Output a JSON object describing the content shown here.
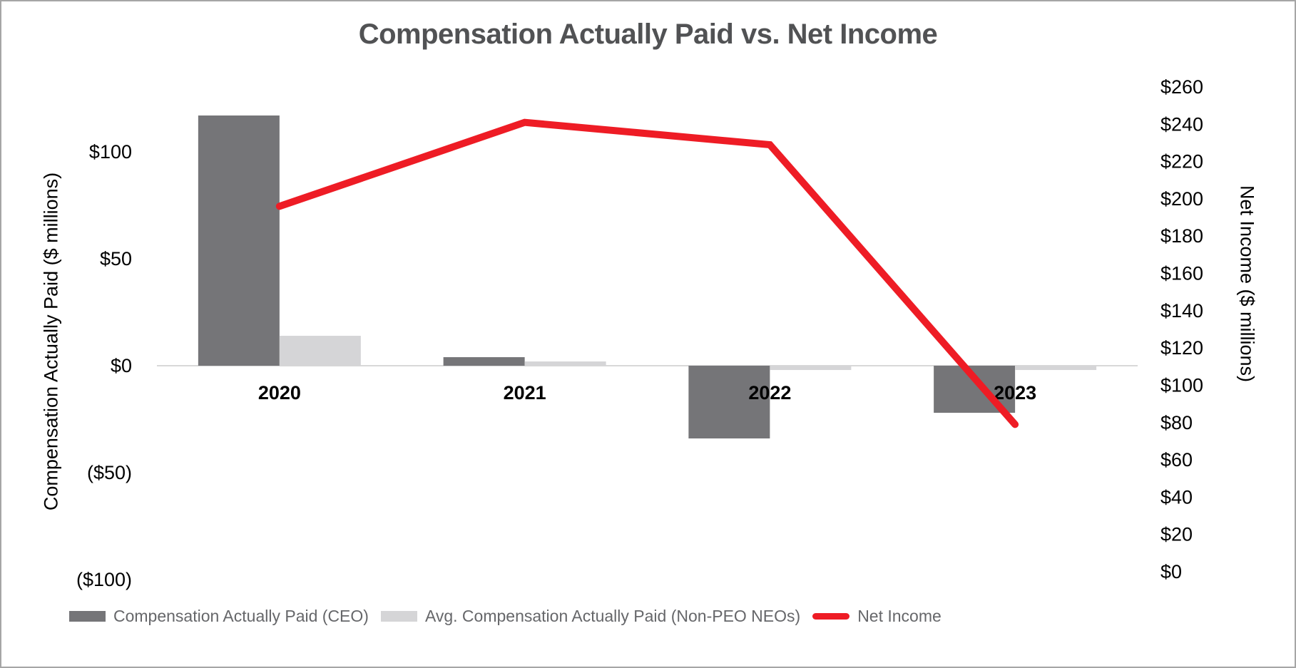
{
  "chart_data": {
    "type": "combo-bar-line",
    "title": "Compensation Actually Paid vs. Net Income",
    "categories": [
      "2020",
      "2021",
      "2022",
      "2023"
    ],
    "series": [
      {
        "name": "Compensation Actually Paid (CEO)",
        "type": "bar",
        "axis": "left",
        "color": "#757578",
        "values": [
          117,
          4,
          -34,
          -22
        ]
      },
      {
        "name": "Avg. Compensation Actually Paid (Non-PEO NEOs)",
        "type": "bar",
        "axis": "left",
        "color": "#d5d5d7",
        "values": [
          14,
          2,
          -2,
          -2
        ]
      },
      {
        "name": "Net Income",
        "type": "line",
        "axis": "right",
        "color": "#ee1c25",
        "values": [
          196,
          241,
          229,
          79
        ]
      }
    ],
    "left_axis": {
      "label": "Compensation Actually Paid ($ millions)",
      "ticks": [
        {
          "value": 100,
          "label": "$100"
        },
        {
          "value": 50,
          "label": "$50"
        },
        {
          "value": 0,
          "label": "$0"
        },
        {
          "value": -50,
          "label": "($50)"
        },
        {
          "value": -100,
          "label": "($100)"
        }
      ],
      "range": [
        -100,
        125
      ]
    },
    "right_axis": {
      "label": "Net Income ($ millions)",
      "ticks": [
        {
          "value": 260,
          "label": "$260"
        },
        {
          "value": 240,
          "label": "$240"
        },
        {
          "value": 220,
          "label": "$220"
        },
        {
          "value": 200,
          "label": "$200"
        },
        {
          "value": 180,
          "label": "$180"
        },
        {
          "value": 160,
          "label": "$160"
        },
        {
          "value": 140,
          "label": "$140"
        },
        {
          "value": 120,
          "label": "$120"
        },
        {
          "value": 100,
          "label": "$100"
        },
        {
          "value": 80,
          "label": "$80"
        },
        {
          "value": 60,
          "label": "$60"
        },
        {
          "value": 40,
          "label": "$40"
        },
        {
          "value": 20,
          "label": "$20"
        },
        {
          "value": 0,
          "label": "$0"
        }
      ],
      "range": [
        0,
        260
      ]
    },
    "legend_position": "bottom",
    "grid": false,
    "colors": {
      "axis_line": "#d8d8d8",
      "tick_text": "#000000",
      "category_text": "#000000",
      "title_text": "#515254",
      "legend_text": "#66676a"
    }
  }
}
